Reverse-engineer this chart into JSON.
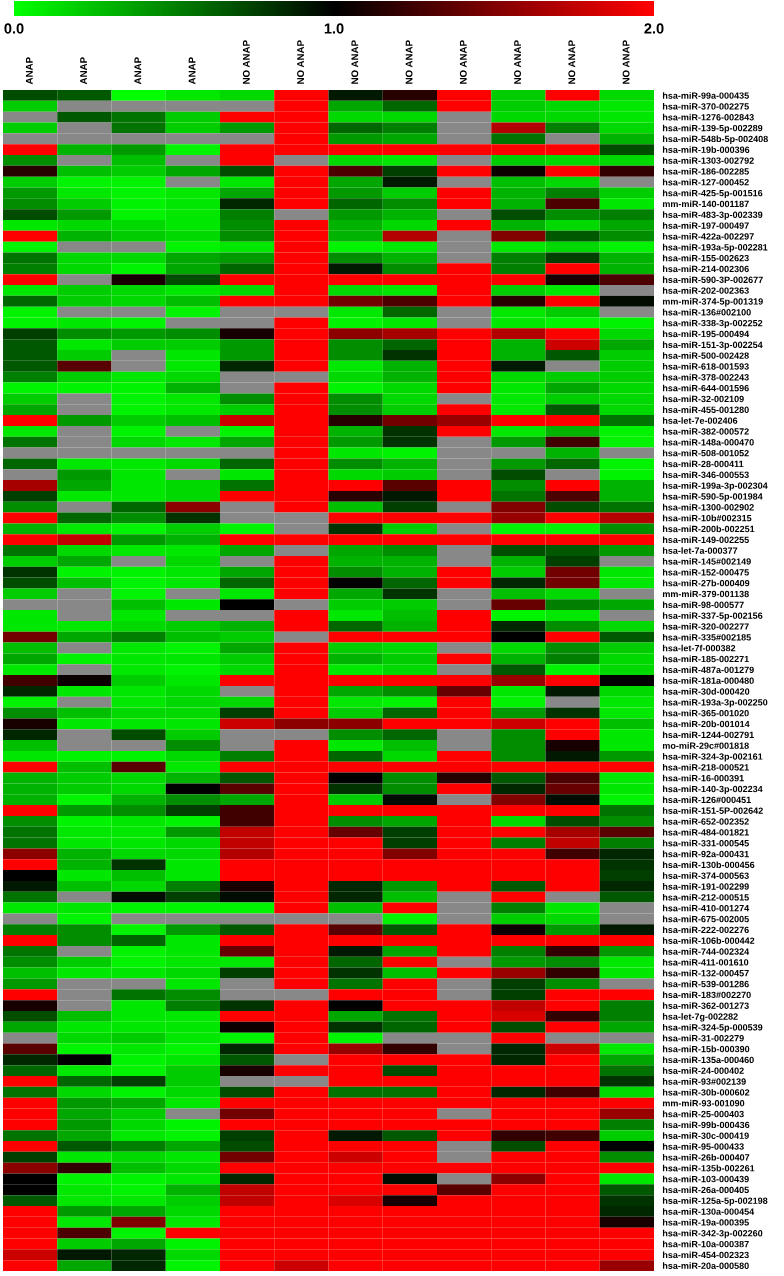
{
  "chart_data": {
    "type": "heatmap",
    "categories": [
      "ANAP",
      "ANAP",
      "ANAP",
      "ANAP",
      "NO ANAP",
      "NO ANAP",
      "NO ANAP",
      "NO ANAP",
      "NO ANAP",
      "NO ANAP",
      "NO ANAP",
      "NO ANAP"
    ],
    "y_categories": [
      "hsa-miR-99a-000435",
      "hsa-miR-370-002275",
      "hsa-miR-1276-002843",
      "hsa-miR-139-5p-002289",
      "hsa-miR-548b-5p-002408",
      "hsa-miR-19b-000396",
      "hsa-miR-1303-002792",
      "hsa-miR-186-002285",
      "hsa-miR-127-000452",
      "hsa-miR-425-5p-001516",
      "mm-miR-140-001187",
      "hsa-miR-483-3p-002339",
      "hsa-miR-197-000497",
      "hsa-miR-422a-002297",
      "hsa-miR-193a-5p-002281",
      "hsa-miR-155-002623",
      "hsa-miR-214-002306",
      "hsa-miR-590-3P-002677",
      "hsa-miR-202-002363",
      "mm-miR-374-5p-001319",
      "hsa-miR-136#002100",
      "hsa-miR-338-3p-002252",
      "hsa-miR-195-000494",
      "hsa-miR-151-3p-002254",
      "hsa-miR-500-002428",
      "hsa-miR-618-001593",
      "hsa-miR-378-002243",
      "hsa-miR-644-001596",
      "hsa-miR-32-002109",
      "hsa-miR-455-001280",
      "hsa-let-7e-002406",
      "hsa-miR-382-000572",
      "hsa-miR-148a-000470",
      "hsa-miR-508-001052",
      "hsa-miR-28-000411",
      "hsa-miR-346-000553",
      "hsa-miR-199a-3p-002304",
      "hsa-miR-590-5p-001984",
      "hsa-miR-1300-002902",
      "hsa-miR-10b#002315",
      "hsa-miR-200b-002251",
      "hsa-miR-149-002255",
      "hsa-let-7a-000377",
      "hsa-miR-145#002149",
      "hsa-miR-152-000475",
      "hsa-miR-27b-000409",
      "mm-miR-379-001138",
      "hsa-miR-98-000577",
      "hsa-miR-337-5p-002156",
      "hsa-miR-320-002277",
      "hsa-miR-335#002185",
      "hsa-let-7f-000382",
      "hsa-miR-185-002271",
      "hsa-miR-487a-001279",
      "hsa-miR-181a-000480",
      "hsa-miR-30d-000420",
      "hsa-miR-193a-3p-002250",
      "hsa-miR-365-001020",
      "hsa-miR-20b-001014",
      "hsa-miR-1244-002791",
      "mo-miR-29c#001818",
      "hsa-miR-324-3p-002161",
      "hsa-miR-218-000521",
      "hsa-miR-16-000391",
      "hsa-miR-140-3p-002234",
      "hsa-miR-126#000451",
      "hsa-miR-151-5P-002642",
      "hsa-miR-652-002352",
      "hsa-miR-484-001821",
      "hsa-miR-331-000545",
      "hsa-miR-92a-000431",
      "hsa-miR-130b-000456",
      "hsa-miR-374-000563",
      "hsa-miR-191-002299",
      "hsa-miR-212-000515",
      "hsa-miR-410-001274",
      "hsa-miR-675-002005",
      "hsa-miR-222-002276",
      "hsa-miR-106b-000442",
      "hsa-miR-744-002324",
      "hsa-miR-411-001610",
      "hsa-miR-132-000457",
      "hsa-miR-539-001286",
      "hsa-miR-183#002270",
      "hsa-miR-362-001273",
      "hsa-let-7g-002282",
      "hsa-miR-324-5p-000539",
      "hsa-miR-31-002279",
      "hsa-miR-15b-000390",
      "hsa-miR-135a-000460",
      "hsa-miR-24-000402",
      "hsa-miR-93#002139",
      "hsa-miR-30b-000602",
      "mm-miR-93-001090",
      "hsa-miR-25-000403",
      "hsa-miR-99b-000436",
      "hsa-miR-30c-000419",
      "hsa-miR-95-000433",
      "hsa-miR-26b-000407",
      "hsa-miR-135b-002261",
      "hsa-miR-103-000439",
      "hsa-miR-26a-000405",
      "hsa-miR-125a-5p-002198",
      "hsa-miR-130a-000454",
      "hsa-miR-19a-000395",
      "hsa-miR-342-3p-002260",
      "hsa-miR-10a-000387",
      "hsa-miR-454-002323",
      "hsa-miR-20a-000580"
    ],
    "cells": [
      [
        0.7,
        0.65,
        0.0,
        0.1,
        0.15,
        2,
        0.9,
        1.15,
        2,
        0.2,
        2,
        0.15
      ],
      [
        0.2,
        null,
        null,
        null,
        null,
        2,
        0.35,
        0.6,
        2,
        0.2,
        0.15,
        0.1
      ],
      [
        null,
        0.65,
        0.55,
        0.2,
        2,
        2,
        0.15,
        0.15,
        null,
        0.15,
        0.15,
        0.1
      ],
      [
        0.2,
        null,
        0.55,
        0.2,
        0.4,
        2,
        0.6,
        0.5,
        null,
        1.7,
        0.5,
        0.15
      ],
      [
        null,
        null,
        null,
        null,
        null,
        2,
        0.4,
        0.35,
        null,
        0.55,
        null,
        0.3
      ],
      [
        2,
        0.3,
        0.4,
        0.05,
        2,
        2,
        2,
        2,
        2,
        2,
        2,
        0.7
      ],
      [
        0.45,
        null,
        0.25,
        null,
        2,
        null,
        0.15,
        0.1,
        null,
        0.2,
        0.15,
        0.15
      ],
      [
        1.15,
        0.25,
        0.2,
        0.35,
        0.7,
        2,
        1.3,
        0.75,
        2,
        1.05,
        2,
        1.2
      ],
      [
        0.2,
        0.05,
        0.05,
        null,
        0.1,
        2,
        0.35,
        0.9,
        null,
        0.25,
        0.15,
        null
      ],
      [
        0.4,
        0.1,
        0.05,
        0.1,
        0.35,
        2,
        0.4,
        0.2,
        2,
        0.3,
        0.5,
        0.2
      ],
      [
        0.45,
        0.2,
        0.05,
        0.1,
        0.85,
        2,
        0.6,
        0.45,
        2,
        0.3,
        1.3,
        0.1
      ],
      [
        0.7,
        0.4,
        0.05,
        0.1,
        0.5,
        null,
        0.4,
        0.3,
        null,
        0.7,
        0.45,
        0.5
      ],
      [
        0.1,
        0.15,
        0.15,
        0.1,
        0.45,
        2,
        0.3,
        0.15,
        2,
        0.3,
        0.15,
        0.35
      ],
      [
        2,
        0.3,
        0.2,
        0.15,
        0.45,
        2,
        0.3,
        1.7,
        null,
        1.5,
        0.65,
        0.45
      ],
      [
        0.05,
        null,
        null,
        0.05,
        0.1,
        2,
        0.05,
        0.1,
        null,
        0.1,
        0.15,
        0.05
      ],
      [
        0.55,
        0.15,
        0.15,
        0.35,
        0.4,
        2,
        0.45,
        0.3,
        null,
        0.5,
        0.75,
        0.3
      ],
      [
        0.5,
        0.15,
        0.05,
        0.35,
        0.6,
        2,
        0.9,
        0.45,
        2,
        0.5,
        2,
        0.3
      ],
      [
        2,
        null,
        1.1,
        0.7,
        2,
        2,
        2,
        2,
        2,
        2,
        1.1,
        1.3
      ],
      [
        0.1,
        0.2,
        0.15,
        0.1,
        0.15,
        2,
        0.15,
        0.1,
        2,
        0.2,
        0.1,
        null
      ],
      [
        0.6,
        0.2,
        0.15,
        0.25,
        2,
        2,
        1.45,
        1.3,
        2,
        1.15,
        2,
        0.95
      ],
      [
        0.05,
        null,
        null,
        0.05,
        null,
        null,
        0.1,
        0.6,
        null,
        0.1,
        0.2,
        null
      ],
      [
        0.05,
        0.1,
        0.05,
        null,
        null,
        2,
        0.05,
        0.1,
        null,
        0.1,
        0.05,
        0.05
      ],
      [
        0.75,
        0.45,
        0.4,
        0.45,
        1.1,
        2,
        1.55,
        1.65,
        2,
        1.7,
        2,
        0.15
      ],
      [
        0.65,
        0.1,
        0.2,
        0.2,
        0.4,
        2,
        0.45,
        0.6,
        2,
        0.3,
        1.8,
        0.35
      ],
      [
        0.65,
        0.2,
        null,
        0.1,
        0.4,
        2,
        0.45,
        0.8,
        2,
        0.3,
        0.65,
        0.2
      ],
      [
        0.65,
        1.35,
        null,
        0.1,
        0.85,
        2,
        0.1,
        0.3,
        2,
        0.9,
        null,
        0.2
      ],
      [
        0.5,
        0.2,
        0.1,
        0.15,
        null,
        null,
        0.15,
        0.3,
        2,
        0.15,
        0.2,
        0.2
      ],
      [
        0.05,
        0.05,
        0.05,
        0.3,
        null,
        2,
        0.05,
        0.15,
        2,
        0.1,
        0.35,
        0.15
      ],
      [
        0.2,
        null,
        0.05,
        0.1,
        0.45,
        2,
        0.45,
        0.15,
        null,
        0.1,
        0.2,
        0.15
      ],
      [
        0.35,
        null,
        0.05,
        0.1,
        0.2,
        2,
        0.45,
        0.2,
        2,
        0.1,
        0.65,
        0.15
      ],
      [
        2,
        0.4,
        0.2,
        0.25,
        1.8,
        2,
        1.15,
        1.45,
        1.6,
        2,
        2,
        0.55
      ],
      [
        0.1,
        null,
        0.05,
        null,
        0.05,
        2,
        0.3,
        0.8,
        2,
        0.1,
        0.3,
        0.05
      ],
      [
        0.55,
        null,
        0.15,
        0.1,
        0.35,
        2,
        0.4,
        0.8,
        null,
        0.4,
        1.25,
        0.05
      ],
      [
        null,
        null,
        null,
        null,
        null,
        2,
        0.1,
        0.05,
        null,
        null,
        0.3,
        null
      ],
      [
        0.6,
        0.1,
        0.1,
        0.15,
        0.6,
        2,
        0.45,
        0.3,
        null,
        0.4,
        0.6,
        0.05
      ],
      [
        null,
        0.4,
        0.1,
        null,
        0.1,
        2,
        0.15,
        0.2,
        null,
        0.7,
        null,
        0.05
      ],
      [
        1.65,
        0.35,
        0.1,
        0.15,
        0.55,
        2,
        2,
        1.35,
        2,
        0.45,
        2,
        0.3
      ],
      [
        0.75,
        0.1,
        0.1,
        0.15,
        2,
        2,
        1.15,
        0.9,
        2,
        0.55,
        1.3,
        0.3
      ],
      [
        0.45,
        null,
        0.6,
        1.55,
        null,
        2,
        0.25,
        0.75,
        null,
        1.5,
        0.7,
        0.55
      ],
      [
        2,
        0.6,
        0.45,
        0.8,
        null,
        null,
        2,
        2,
        2,
        1.6,
        2,
        1.7
      ],
      [
        0.3,
        0.1,
        0.05,
        0.2,
        0.05,
        null,
        0.8,
        0.2,
        null,
        0.05,
        0.05,
        0.45
      ],
      [
        2,
        1.75,
        0.4,
        0.3,
        2,
        2,
        2,
        2,
        2,
        2,
        2,
        2
      ],
      [
        0.55,
        0.15,
        0.1,
        0.1,
        0.35,
        null,
        0.35,
        0.45,
        null,
        0.7,
        0.65,
        0.4
      ],
      [
        0.2,
        0.35,
        null,
        0.15,
        null,
        2,
        0.3,
        0.3,
        null,
        0.3,
        0.75,
        null
      ],
      [
        0.8,
        0.05,
        0.05,
        0.1,
        0.35,
        2,
        0.45,
        0.3,
        2,
        0.2,
        1.45,
        0.1
      ],
      [
        0.7,
        0.25,
        0.05,
        0.1,
        0.6,
        2,
        1.0,
        0.6,
        2,
        0.85,
        1.45,
        0.1
      ],
      [
        0.2,
        null,
        0.05,
        null,
        0.1,
        2,
        0.35,
        0.8,
        null,
        0.25,
        0.15,
        null
      ],
      [
        null,
        null,
        0.25,
        0.1,
        1.0,
        null,
        0.2,
        0.2,
        null,
        1.4,
        0.5,
        0.35
      ],
      [
        0.1,
        null,
        0.1,
        null,
        null,
        2,
        0.1,
        0.25,
        2,
        0.05,
        0.1,
        null
      ],
      [
        0.1,
        0.1,
        0.15,
        0.2,
        0.3,
        2,
        0.6,
        0.3,
        2,
        0.85,
        0.45,
        0.15
      ],
      [
        1.45,
        0.35,
        0.5,
        0.25,
        0.2,
        null,
        2,
        2,
        2,
        1.0,
        2,
        0.65
      ],
      [
        0.25,
        null,
        0.1,
        0.05,
        0.35,
        2,
        0.2,
        0.15,
        null,
        0.15,
        0.45,
        0.2
      ],
      [
        0.35,
        0.05,
        0.1,
        0.1,
        0.2,
        2,
        0.3,
        0.2,
        2,
        0.3,
        0.5,
        0.15
      ],
      [
        0.1,
        null,
        0.1,
        0.05,
        0.15,
        2,
        0.1,
        0.15,
        null,
        0.65,
        0.05,
        0.15
      ],
      [
        1.25,
        1.05,
        0.2,
        0.1,
        2,
        2,
        2,
        2,
        2,
        1.6,
        2,
        1.0
      ],
      [
        0.85,
        0.1,
        0.1,
        0.15,
        null,
        2,
        0.35,
        0.45,
        1.4,
        0.1,
        0.9,
        0.15
      ],
      [
        0.05,
        null,
        0.1,
        0.15,
        0.15,
        2,
        0.1,
        0.05,
        2,
        0.05,
        null,
        0.1
      ],
      [
        0.45,
        0.25,
        0.15,
        0.15,
        0.75,
        2,
        0.2,
        0.6,
        2,
        0.4,
        0.8,
        0.1
      ],
      [
        1.1,
        0.1,
        0.1,
        0.1,
        1.8,
        1.55,
        1.55,
        2,
        2,
        1.8,
        2,
        0.25
      ],
      [
        0.85,
        null,
        0.7,
        0.2,
        null,
        null,
        0.45,
        0.6,
        null,
        0.45,
        2,
        0.1
      ],
      [
        0.25,
        null,
        null,
        0.45,
        null,
        2,
        0.1,
        0.25,
        null,
        0.45,
        1.1,
        0.1
      ],
      [
        0.1,
        0.05,
        0.05,
        0.15,
        0.5,
        2,
        0.6,
        0.15,
        2,
        0.45,
        0.9,
        0.4
      ],
      [
        2,
        0.25,
        1.35,
        0.1,
        2,
        2,
        2,
        2,
        2,
        2,
        2,
        2
      ],
      [
        0.3,
        0.2,
        0.15,
        0.3,
        0.65,
        2,
        1.0,
        0.45,
        1.15,
        0.65,
        1.3,
        0.1
      ],
      [
        0.3,
        0.2,
        0.15,
        1.0,
        1.35,
        2,
        0.8,
        0.45,
        2,
        0.85,
        1.4,
        0.1
      ],
      [
        0.3,
        0.05,
        0.3,
        0.45,
        0.35,
        2,
        0.2,
        0.95,
        null,
        1.5,
        0.95,
        0.05
      ],
      [
        2,
        0.4,
        0.45,
        0.75,
        1.25,
        2,
        2,
        2,
        2,
        2,
        2,
        0.55
      ],
      [
        0.45,
        0.05,
        0.1,
        0.05,
        1.25,
        2,
        0.45,
        0.35,
        2,
        0.15,
        0.7,
        0.45
      ],
      [
        0.55,
        0.1,
        0.1,
        0.4,
        1.75,
        2,
        1.4,
        0.75,
        2,
        2,
        1.65,
        1.35
      ],
      [
        0.55,
        0.1,
        0.1,
        0.15,
        1.75,
        2,
        2,
        0.75,
        2,
        0.5,
        1.75,
        0.5
      ],
      [
        1.55,
        0.3,
        0.15,
        0.15,
        1.7,
        2,
        2,
        1.5,
        2,
        2,
        1.25,
        0.85
      ],
      [
        2,
        0.3,
        0.8,
        0.1,
        2,
        2,
        2,
        2,
        2,
        2,
        2,
        0.8
      ],
      [
        1.0,
        0.1,
        0.25,
        0.1,
        2,
        2,
        2,
        2,
        2,
        2,
        2,
        0.75
      ],
      [
        0.9,
        0.25,
        0.15,
        0.5,
        1.1,
        2,
        0.85,
        0.4,
        2,
        0.65,
        2,
        0.85
      ],
      [
        0.55,
        null,
        0.95,
        0.75,
        0.95,
        2,
        0.85,
        0.25,
        null,
        2,
        null,
        0.65
      ],
      [
        0.1,
        0.1,
        0.05,
        0.05,
        0.05,
        2,
        0.25,
        2,
        null,
        0.5,
        0.1,
        null
      ],
      [
        null,
        0.05,
        null,
        null,
        null,
        null,
        null,
        0.05,
        null,
        0.2,
        0.15,
        null
      ],
      [
        0.5,
        0.45,
        0.05,
        0.4,
        0.65,
        2,
        1.35,
        0.65,
        2,
        1.05,
        0.4,
        0.9
      ],
      [
        2,
        0.45,
        0.6,
        0.1,
        2,
        2,
        2,
        2,
        2,
        2,
        2,
        2
      ],
      [
        0.55,
        null,
        0.05,
        0.1,
        1.4,
        2,
        0.9,
        0.35,
        2,
        0.5,
        1.2,
        0.4
      ],
      [
        0.45,
        0.2,
        0.05,
        0.1,
        0.1,
        2,
        0.6,
        2,
        null,
        0.4,
        0.45,
        0.1
      ],
      [
        0.25,
        0.1,
        0.1,
        0.15,
        0.75,
        2,
        0.8,
        0.25,
        2,
        1.6,
        1.2,
        0.1
      ],
      [
        0.4,
        null,
        null,
        0.1,
        null,
        2,
        0.55,
        2,
        null,
        0.75,
        0.45,
        null
      ],
      [
        2,
        null,
        0.55,
        0.45,
        null,
        null,
        2,
        2,
        null,
        0.75,
        2,
        2
      ],
      [
        1.1,
        null,
        0.1,
        0.5,
        0.8,
        2,
        1.0,
        2,
        2,
        1.75,
        2,
        0.5
      ],
      [
        0.7,
        0.25,
        0.1,
        0.1,
        2,
        2,
        0.35,
        0.55,
        2,
        1.85,
        1.2,
        0.5
      ],
      [
        0.35,
        0.1,
        0.1,
        0.1,
        1.05,
        2,
        0.8,
        0.6,
        2,
        0.7,
        2,
        0.35
      ],
      [
        null,
        0.15,
        0.2,
        0.1,
        0.05,
        2,
        0.05,
        null,
        null,
        2,
        null,
        null
      ],
      [
        1.35,
        0.05,
        0.1,
        0.05,
        0.85,
        2,
        1.6,
        1.2,
        null,
        0.85,
        1.8,
        0.1
      ],
      [
        0.85,
        1.0,
        0.05,
        0.1,
        0.65,
        null,
        2,
        2,
        2,
        0.85,
        2,
        0.35
      ],
      [
        0.6,
        0.1,
        0.05,
        0.2,
        1.1,
        2,
        2,
        0.7,
        2,
        2,
        2,
        0.55
      ],
      [
        2,
        0.6,
        0.75,
        0.2,
        null,
        null,
        2,
        2,
        2,
        2,
        2,
        0.8
      ],
      [
        0.55,
        0.15,
        0.05,
        0.15,
        0.7,
        2,
        0.55,
        0.55,
        2,
        0.85,
        1.25,
        0.15
      ],
      [
        2,
        0.4,
        0.35,
        0.1,
        2,
        2,
        2,
        2,
        2,
        2,
        2,
        2
      ],
      [
        2,
        0.35,
        0.2,
        null,
        1.45,
        2,
        2,
        2,
        null,
        2,
        2,
        1.6
      ],
      [
        2,
        0.4,
        0.15,
        0.05,
        2,
        2,
        2,
        2,
        2,
        2,
        2,
        0.5
      ],
      [
        0.55,
        0.35,
        0.1,
        0.05,
        0.75,
        2,
        0.9,
        0.65,
        2,
        1.2,
        1.25,
        0.2
      ],
      [
        2,
        0.65,
        0.5,
        0.35,
        0.7,
        2,
        2,
        2,
        null,
        0.7,
        2,
        1.0
      ],
      [
        0.75,
        0.1,
        0.15,
        0.1,
        1.45,
        2,
        1.8,
        2,
        null,
        2,
        2,
        0.45
      ],
      [
        1.55,
        1.2,
        0.25,
        0.15,
        2,
        2,
        2,
        2,
        2,
        2,
        2,
        2
      ],
      [
        1.0,
        0.05,
        0.05,
        0.1,
        0.85,
        2,
        2,
        0.95,
        null,
        1.55,
        2,
        0.1
      ],
      [
        1.0,
        0.1,
        0.05,
        0.3,
        1.75,
        2,
        2,
        2,
        1.35,
        2,
        2,
        0.65
      ],
      [
        0.65,
        0.1,
        0.1,
        0.2,
        1.75,
        2,
        1.85,
        1.1,
        2,
        2,
        2,
        0.8
      ],
      [
        2,
        0.4,
        0.35,
        0.15,
        2,
        2,
        2,
        2,
        2,
        2,
        2,
        0.85
      ],
      [
        2,
        0.1,
        1.5,
        0.1,
        2,
        2,
        2,
        2,
        2,
        2,
        2,
        1.1
      ],
      [
        2,
        1.3,
        0.05,
        2,
        2,
        2,
        2,
        2,
        2,
        2,
        2,
        2
      ],
      [
        2,
        0.2,
        0.35,
        0.05,
        2,
        2,
        2,
        2,
        2,
        2,
        2,
        2
      ],
      [
        1.8,
        0.9,
        0.85,
        0.15,
        2,
        2,
        2,
        2,
        2,
        2,
        2,
        2
      ],
      [
        2,
        0.35,
        0.85,
        0.05,
        2,
        1.8,
        2,
        2,
        2,
        2,
        2,
        1.6
      ]
    ],
    "clim": [
      0,
      2
    ],
    "cticks": [
      {
        "value": 0,
        "label": "0.0"
      },
      {
        "value": 1,
        "label": "1.0"
      },
      {
        "value": 2,
        "label": "2.0"
      }
    ]
  }
}
